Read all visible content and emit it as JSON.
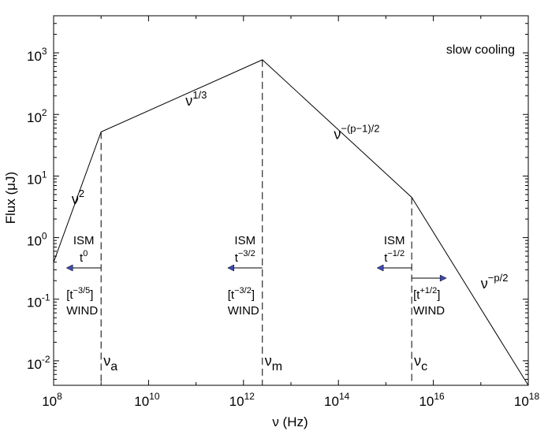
{
  "chart_data": {
    "type": "line",
    "title": "",
    "xlabel": "ν (Hz)",
    "ylabel": "Flux (μJ)",
    "x_scale": "log",
    "y_scale": "log",
    "xlim": [
      100000000.0,
      1e+18
    ],
    "ylim": [
      0.004,
      4000
    ],
    "x_ticks": [
      {
        "base": "10",
        "exp": "8",
        "value": 100000000.0
      },
      {
        "base": "10",
        "exp": "10",
        "value": 10000000000.0
      },
      {
        "base": "10",
        "exp": "12",
        "value": 1000000000000.0
      },
      {
        "base": "10",
        "exp": "14",
        "value": 100000000000000.0
      },
      {
        "base": "10",
        "exp": "16",
        "value": 1e+16
      },
      {
        "base": "10",
        "exp": "18",
        "value": 1e+18
      }
    ],
    "y_ticks": [
      {
        "base": "10",
        "exp": "-2",
        "value": 0.01
      },
      {
        "base": "10",
        "exp": "-1",
        "value": 0.1
      },
      {
        "base": "10",
        "exp": "0",
        "value": 1
      },
      {
        "base": "10",
        "exp": "1",
        "value": 10
      },
      {
        "base": "10",
        "exp": "2",
        "value": 100
      },
      {
        "base": "10",
        "exp": "3",
        "value": 1000
      }
    ],
    "series": [
      {
        "x": [
          100000000.0,
          1000000000.0,
          2500000000000.0,
          3500000000000000.0,
          1e+18
        ],
        "y": [
          0.4,
          52,
          770,
          4.5,
          0.004
        ]
      }
    ],
    "break_frequencies": [
      {
        "symbol": "ν",
        "sub": "a",
        "x": 1000000000.0,
        "y_peak": 52
      },
      {
        "symbol": "ν",
        "sub": "m",
        "x": 2500000000000.0,
        "y_peak": 770
      },
      {
        "symbol": "ν",
        "sub": "c",
        "x": 3500000000000000.0,
        "y_peak": 4.5
      }
    ],
    "regime_label": "slow cooling",
    "slope_labels": [
      {
        "base": "ν",
        "exp": "2",
        "x": 240000000.0,
        "y": 3.5
      },
      {
        "base": "ν",
        "exp": "1/3",
        "x": 60000000000.0,
        "y": 140
      },
      {
        "base": "ν",
        "exp": "−(p−1)/2",
        "x": 80000000000000.0,
        "y": 40
      },
      {
        "base": "ν",
        "exp": "−p/2",
        "x": 1e+17,
        "y": 0.15
      }
    ],
    "evolution": [
      {
        "x": 1000000000.0,
        "ism_label": "ISM",
        "ism_base": "t",
        "ism_exp": "0",
        "ism_dir": "left",
        "wind_open": "[t",
        "wind_exp": "−3/5",
        "wind_close": "]",
        "wind_label": "WIND",
        "wind_dir": "none"
      },
      {
        "x": 2500000000000.0,
        "ism_label": "ISM",
        "ism_base": "t",
        "ism_exp": "−3/2",
        "ism_dir": "left",
        "wind_open": "[t",
        "wind_exp": "−3/2",
        "wind_close": "]",
        "wind_label": "WIND",
        "wind_dir": "none"
      },
      {
        "x": 3500000000000000.0,
        "ism_label": "ISM",
        "ism_base": "t",
        "ism_exp": "−1/2",
        "ism_dir": "left",
        "wind_open": "[t",
        "wind_exp": "+1/2",
        "wind_close": "]",
        "wind_label": "WIND",
        "wind_dir": "right"
      }
    ],
    "arrow_color": "#3d49b5",
    "grid": false,
    "legend": "none"
  }
}
